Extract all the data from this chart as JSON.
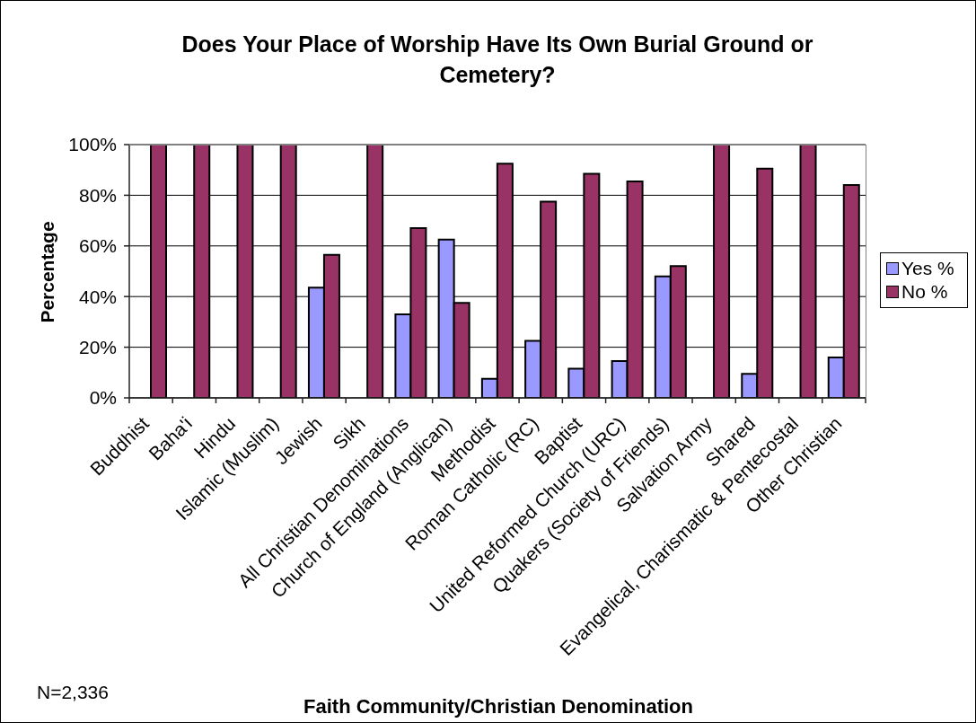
{
  "chart_data": {
    "type": "bar",
    "title": "Does Your Place of Worship Have Its Own Burial Ground or Cemetery?",
    "xlabel": "Faith Community/Christian Denomination",
    "ylabel": "Percentage",
    "annotations": [
      "N=2,336"
    ],
    "categories": [
      "Buddhist",
      "Baha'i",
      "Hindu",
      "Islamic (Muslim)",
      "Jewish",
      "Sikh",
      "All Christian Denominations",
      "Church of England (Anglican)",
      "Methodist",
      "Roman Catholic (RC)",
      "Baptist",
      "United Reformed Church (URC)",
      "Quakers (Society of Friends)",
      "Salvation Army",
      "Shared",
      "Evangelical, Charismatic & Pentecostal",
      "Other Christian"
    ],
    "series": [
      {
        "name": "Yes %",
        "color": "#9999ff",
        "values": [
          0,
          0,
          0,
          0,
          43.5,
          0,
          33,
          62.5,
          7.5,
          22.5,
          11.5,
          14.5,
          48,
          0,
          9.5,
          0,
          16
        ]
      },
      {
        "name": "No %",
        "color": "#993366",
        "values": [
          100,
          100,
          100,
          100,
          56.5,
          100,
          67,
          37.5,
          92.5,
          77.5,
          88.5,
          85.5,
          52,
          100,
          90.5,
          100,
          84
        ]
      }
    ],
    "ylim": [
      0,
      100
    ],
    "yticks": [
      {
        "value": 0,
        "label": "0%"
      },
      {
        "value": 20,
        "label": "20%"
      },
      {
        "value": 40,
        "label": "40%"
      },
      {
        "value": 60,
        "label": "60%"
      },
      {
        "value": 80,
        "label": "80%"
      },
      {
        "value": 100,
        "label": "100%"
      }
    ],
    "grid": "y",
    "legend": "right"
  }
}
